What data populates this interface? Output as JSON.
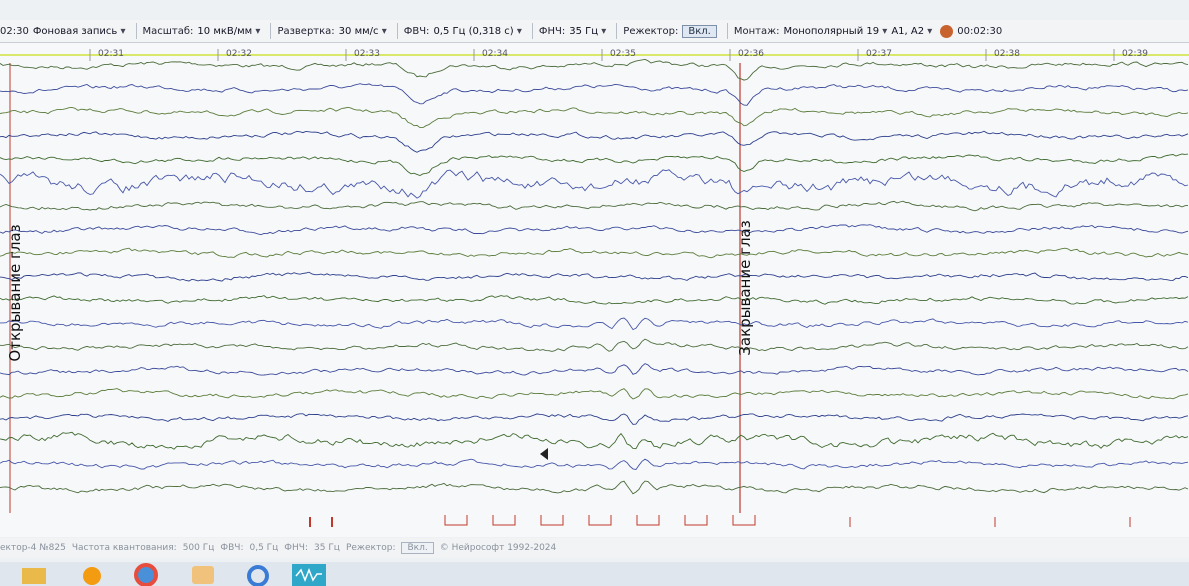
{
  "toolbar": {
    "time": "02:30",
    "mode": "Фоновая запись",
    "scale_label": "Масштаб:",
    "scale": "10 мкВ/мм",
    "sweep_label": "Развертка:",
    "sweep": "30 мм/с",
    "hpf_label": "ФВЧ:",
    "hpf": "0,5 Гц (0,318 с)",
    "lpf_label": "ФНЧ:",
    "lpf": "35 Гц",
    "notch_label": "Режектор:",
    "notch": "Вкл.",
    "montage_label": "Монтаж:",
    "montage": "Монополярный 19",
    "reference": "A1, A2",
    "clock": "00:02:30"
  },
  "time_marks": [
    "02:31",
    "02:32",
    "02:33",
    "02:34",
    "02:35",
    "02:36",
    "02:37",
    "02:38",
    "02:39"
  ],
  "annotations": {
    "eyes_open": "Открывание глаз",
    "eyes_closed": "Закрывание глаз"
  },
  "status": {
    "device": "ектор-4 №825",
    "rate_label": "Частота квантования:",
    "rate": "500 Гц",
    "hpf_label": "ФВЧ:",
    "hpf": "0,5 Гц",
    "lpf_label": "ФНЧ:",
    "lpf": "35 Гц",
    "notch_label": "Режектор:",
    "notch": "Вкл.",
    "copyright": "© Нейрософт 1992-2024"
  }
}
